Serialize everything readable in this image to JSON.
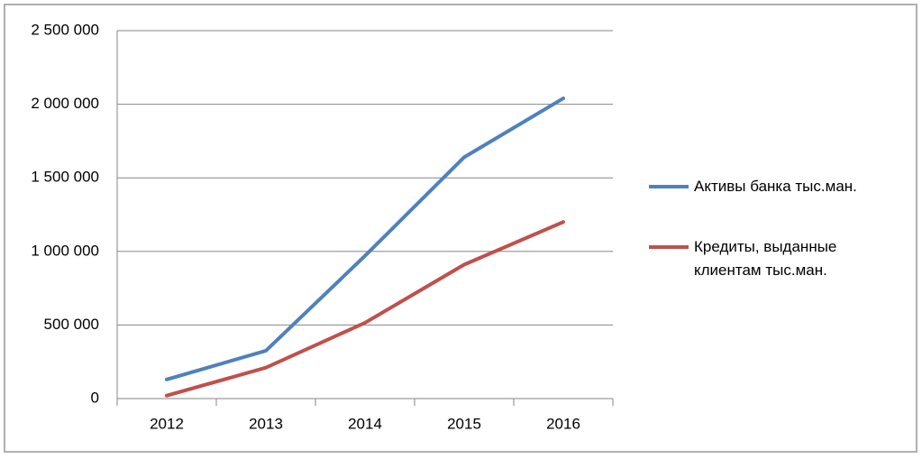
{
  "chart_data": {
    "type": "line",
    "categories": [
      "2012",
      "2013",
      "2014",
      "2015",
      "2016"
    ],
    "series": [
      {
        "name": "Активы банка тыс.ман.",
        "color": "#4f81bd",
        "values": [
          130000,
          325000,
          970000,
          1640000,
          2040000
        ]
      },
      {
        "name": "Кредиты, выданные клиентам тыс.ман.",
        "color": "#c0504d",
        "values": [
          20000,
          210000,
          515000,
          910000,
          1200000
        ]
      }
    ],
    "ylim": [
      0,
      2500000
    ],
    "yticks": [
      0,
      {
        "value": 500000,
        "label": "500 000"
      },
      {
        "value": 1000000,
        "label": "1 000 000"
      },
      {
        "value": 1500000,
        "label": "1 500 000"
      },
      {
        "value": 2000000,
        "label": "2 000 000"
      },
      {
        "value": 2500000,
        "label": "2 500 000"
      }
    ],
    "grid": true,
    "legend": "right"
  }
}
